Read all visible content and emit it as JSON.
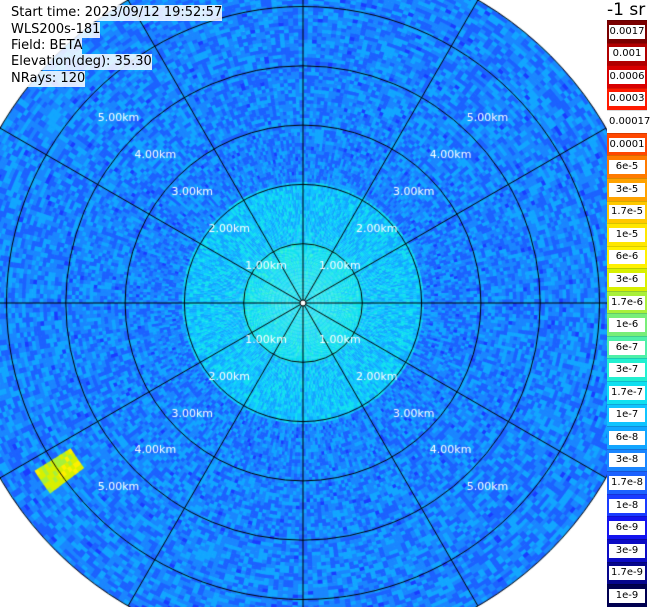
{
  "header": {
    "start_time": "Start time: 2023/09/12 19:52:57",
    "instrument": "WLS200s-181",
    "field": "Field: BETA",
    "elevation": "Elevation(deg): 35.30",
    "nrays": "NRays: 120"
  },
  "colorbar": {
    "unit_label": "-1 sr",
    "entries": [
      {
        "label": "0.0017",
        "color": "#7a0000"
      },
      {
        "label": "0.001",
        "color": "#b00000"
      },
      {
        "label": "0.0006",
        "color": "#d80000"
      },
      {
        "label": "0.0003",
        "color": "#ff1a00"
      },
      {
        "label": "0.00017",
        "color": "#ffffff"
      },
      {
        "label": "0.0001",
        "color": "#ff4800"
      },
      {
        "label": "6e-5",
        "color": "#ff7a00"
      },
      {
        "label": "3e-5",
        "color": "#ffa200"
      },
      {
        "label": "1.7e-5",
        "color": "#ffc800"
      },
      {
        "label": "1e-5",
        "color": "#ffe600"
      },
      {
        "label": "6e-6",
        "color": "#fff000"
      },
      {
        "label": "3e-6",
        "color": "#d8f000"
      },
      {
        "label": "1.7e-6",
        "color": "#a8f03a"
      },
      {
        "label": "1e-6",
        "color": "#78ee78"
      },
      {
        "label": "6e-7",
        "color": "#4ef0a8"
      },
      {
        "label": "3e-7",
        "color": "#22f0d0"
      },
      {
        "label": "1.7e-7",
        "color": "#10e0f0"
      },
      {
        "label": "1e-7",
        "color": "#10c4ff"
      },
      {
        "label": "6e-8",
        "color": "#12a6ff"
      },
      {
        "label": "3e-8",
        "color": "#1a86ff"
      },
      {
        "label": "1.7e-8",
        "color": "#1c62ff"
      },
      {
        "label": "1e-8",
        "color": "#1a3cff"
      },
      {
        "label": "6e-9",
        "color": "#1414ee"
      },
      {
        "label": "3e-9",
        "color": "#0c0cc4"
      },
      {
        "label": "1.7e-9",
        "color": "#06068c"
      },
      {
        "label": "1e-9",
        "color": "#000050"
      }
    ]
  },
  "chart_data": {
    "type": "heatmap",
    "projection": "polar PPI",
    "field": "BETA",
    "elevation_deg": 35.3,
    "n_rays": 120,
    "range_rings_km": [
      1,
      2,
      3,
      4,
      5
    ],
    "ring_labels": [
      "1.00km",
      "2.00km",
      "3.00km",
      "4.00km",
      "5.00km"
    ],
    "max_range_km": 5.9,
    "spokes_every_deg": 30,
    "typical_beta_sr-1": {
      "inner_0_to_1km": 1.7e-07,
      "1_to_2km": 1e-07,
      "beyond_2km": 3e-08
    },
    "highlight": {
      "azimuth_deg": 235,
      "range_km": [
        4.6,
        5.3
      ],
      "approx_beta_sr-1": 3e-06
    }
  }
}
